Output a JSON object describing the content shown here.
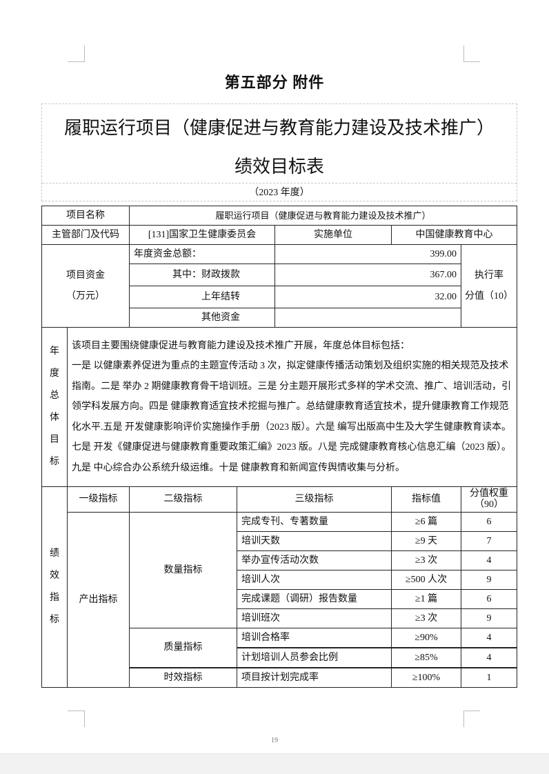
{
  "header": {
    "part_title": "第五部分 附件",
    "title_line1": "履职运行项目（健康促进与教育能力建设及技术推广）",
    "title_line2": "绩效目标表",
    "year": "（2023 年度）"
  },
  "project": {
    "name_label": "项目名称",
    "name_value": "履职运行项目（健康促进与教育能力建设及技术推广）",
    "dept_label": "主管部门及代码",
    "dept_value": "[131]国家卫生健康委员会",
    "impl_label": "实施单位",
    "impl_value": "中国健康教育中心"
  },
  "funds": {
    "label_line1": "项目资金",
    "label_line2": "（万元）",
    "rows": [
      {
        "label": "年度资金总额：",
        "value": "399.00"
      },
      {
        "label": "其中：财政拨款",
        "value": "367.00"
      },
      {
        "label": "上年结转",
        "value": "32.00"
      },
      {
        "label": "其他资金",
        "value": ""
      }
    ],
    "exec_line1": "执行率",
    "exec_line2": "分值（10）"
  },
  "goal": {
    "label_chars": [
      "年",
      "度",
      "总",
      "体",
      "目",
      "标"
    ],
    "text": "该项目主要围绕健康促进与教育能力建设及技术推广开展，年度总体目标包括：一是 以健康素养促进为重点的主题宣传活动 3 次，拟定健康传播活动策划及组织实施的相关规范及技术指南。二是 举办 2 期健康教育骨干培训班。三是 分主题开展形式多样的学术交流、推广、培训活动，引领学科发展方向。四是 健康教育适宜技术挖掘与推广。总结健康教育适宜技术，提升健康教育工作规范化水平.五是 开发健康影响评价实施操作手册（2023 版）。六是 编写出版高中生及大学生健康教育读本。七是 开发《健康促进与健康教育重要政策汇编》2023 版。八是 完成健康教育核心信息汇编（2023 版）。九是 中心综合办公系统升级运维。十是 健康教育和新闻宣传舆情收集与分析。",
    "text_intro": "该项目主要围绕健康促进与教育能力建设及技术推广开展，年度总体目标包括：",
    "text_body": "一是 以健康素养促进为重点的主题宣传活动 3 次，拟定健康传播活动策划及组织实施的相关规范及技术指南。二是 举办 2 期健康教育骨干培训班。三是 分主题开展形式多样的学术交流、推广、培训活动，引领学科发展方向。四是 健康教育适宜技术挖掘与推广。总结健康教育适宜技术，提升健康教育工作规范化水平.五是 开发健康影响评价实施操作手册（2023 版）。六是 编写出版高中生及大学生健康教育读本。七是 开发《健康促进与健康教育重要政策汇编》2023 版。八是 完成健康教育核心信息汇编（2023 版）。九是 中心综合办公系统升级运维。十是 健康教育和新闻宣传舆情收集与分析。"
  },
  "indicators": {
    "label_chars": [
      "绩",
      "效",
      "指",
      "标"
    ],
    "headers": {
      "level1": "一级指标",
      "level2": "二级指标",
      "level3": "三级指标",
      "value": "指标值",
      "weight_line1": "分值权重",
      "weight_line2": "（90）"
    },
    "level1": "产出指标",
    "groups": [
      {
        "name": "数量指标",
        "rows": [
          {
            "name": "完成专刊、专著数量",
            "value": "≥6 篇",
            "weight": "6"
          },
          {
            "name": "培训天数",
            "value": "≥9 天",
            "weight": "7"
          },
          {
            "name": "举办宣传活动次数",
            "value": "≥3 次",
            "weight": "4"
          },
          {
            "name": "培训人次",
            "value": "≥500 人次",
            "weight": "9"
          },
          {
            "name": "完成课题（调研）报告数量",
            "value": "≥1 篇",
            "weight": "6"
          },
          {
            "name": "培训班次",
            "value": "≥3 次",
            "weight": "9"
          }
        ]
      },
      {
        "name": "质量指标",
        "rows": [
          {
            "name": "培训合格率",
            "value": "≥90%",
            "weight": "4"
          },
          {
            "name": "计划培训人员参会比例",
            "value": "≥85%",
            "weight": "4"
          }
        ]
      },
      {
        "name": "时效指标",
        "rows": [
          {
            "name": "项目按计划完成率",
            "value": "≥100%",
            "weight": "1"
          }
        ]
      }
    ]
  },
  "footer": {
    "page_number": "19"
  }
}
